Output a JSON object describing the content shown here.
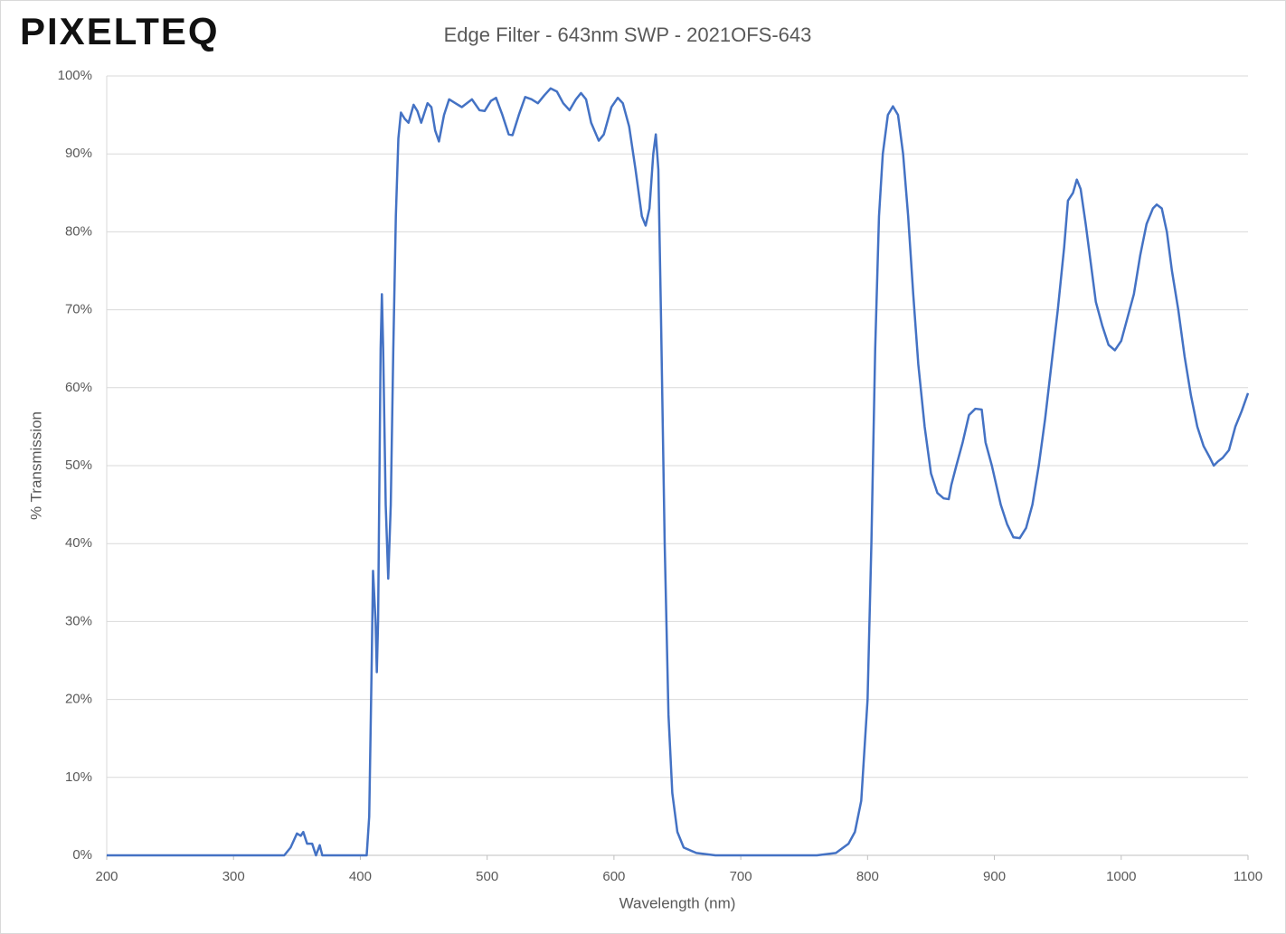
{
  "logo": "PIXELTEQ",
  "chart_data": {
    "type": "line",
    "title": "Edge Filter - 643nm SWP - 2021OFS-643",
    "xlabel": "Wavelength (nm)",
    "ylabel": "% Transmission",
    "color": "#4472c4",
    "grid": true,
    "xlim": [
      200,
      1100
    ],
    "xticks": [
      200,
      300,
      400,
      500,
      600,
      700,
      800,
      900,
      1000,
      1100
    ],
    "ylim": [
      0,
      100
    ],
    "yticks": [
      {
        "value": 0,
        "label": "0%"
      },
      {
        "value": 10,
        "label": "10%"
      },
      {
        "value": 20,
        "label": "20%"
      },
      {
        "value": 30,
        "label": "30%"
      },
      {
        "value": 40,
        "label": "40%"
      },
      {
        "value": 50,
        "label": "50%"
      },
      {
        "value": 60,
        "label": "60%"
      },
      {
        "value": 70,
        "label": "70%"
      },
      {
        "value": 80,
        "label": "80%"
      },
      {
        "value": 90,
        "label": "90%"
      },
      {
        "value": 100,
        "label": "100%"
      }
    ],
    "x": [
      200,
      340,
      345,
      350,
      353,
      355,
      358,
      362,
      365,
      368,
      370,
      405,
      407,
      409,
      410,
      412,
      413,
      414,
      416,
      417,
      418,
      420,
      422,
      424,
      426,
      428,
      430,
      432,
      435,
      438,
      442,
      445,
      448,
      453,
      456,
      459,
      462,
      466,
      470,
      475,
      480,
      488,
      494,
      498,
      503,
      507,
      512,
      517,
      520,
      525,
      530,
      535,
      540,
      545,
      550,
      555,
      560,
      565,
      570,
      574,
      578,
      582,
      588,
      592,
      598,
      603,
      607,
      612,
      617,
      622,
      625,
      628,
      631,
      633,
      635,
      637,
      640,
      643,
      646,
      650,
      655,
      665,
      680,
      760,
      775,
      785,
      790,
      795,
      800,
      803,
      806,
      809,
      812,
      816,
      820,
      824,
      828,
      832,
      836,
      840,
      845,
      850,
      855,
      860,
      864,
      866,
      870,
      875,
      880,
      885,
      890,
      893,
      898,
      905,
      910,
      915,
      920,
      925,
      930,
      935,
      940,
      945,
      950,
      955,
      958,
      962,
      965,
      968,
      972,
      976,
      980,
      985,
      990,
      995,
      1000,
      1005,
      1010,
      1015,
      1020,
      1025,
      1028,
      1032,
      1036,
      1040,
      1045,
      1050,
      1055,
      1060,
      1065,
      1070,
      1073,
      1076,
      1080,
      1085,
      1090,
      1095,
      1100
    ],
    "values": [
      0,
      0,
      1,
      2.8,
      2.5,
      3,
      1.5,
      1.5,
      0,
      1.3,
      0,
      0,
      5,
      25,
      36.5,
      30,
      23.5,
      30,
      65,
      72,
      65,
      45,
      35.5,
      45,
      65,
      82,
      92,
      95.3,
      94.5,
      94,
      96.3,
      95.5,
      94,
      96.5,
      96,
      93,
      91.6,
      95,
      97,
      96.5,
      96,
      97,
      95.6,
      95.5,
      96.8,
      97.2,
      95,
      92.5,
      92.4,
      95,
      97.3,
      97,
      96.5,
      97.5,
      98.4,
      98,
      96.5,
      95.6,
      97,
      97.8,
      97,
      94,
      91.7,
      92.5,
      96,
      97.2,
      96.5,
      93.5,
      88,
      82,
      80.8,
      83,
      90,
      92.5,
      88,
      70,
      40,
      18,
      8,
      3,
      1,
      0.3,
      0,
      0,
      0.3,
      1.5,
      3,
      7,
      20,
      40,
      65,
      82,
      90,
      95,
      96.1,
      95,
      90,
      82,
      72,
      63,
      55,
      49,
      46.5,
      45.8,
      45.7,
      47.5,
      50,
      53,
      56.5,
      57.3,
      57.2,
      53,
      50,
      45,
      42.5,
      40.8,
      40.7,
      42,
      45,
      50,
      56,
      63,
      70,
      78,
      84,
      85,
      86.7,
      85.5,
      81,
      76,
      71,
      68,
      65.5,
      64.8,
      66,
      69,
      72,
      77,
      81,
      83,
      83.5,
      83,
      80,
      75,
      70,
      64,
      59,
      55,
      52.5,
      51,
      50,
      50.5,
      51,
      52,
      55,
      57,
      59.3
    ]
  }
}
